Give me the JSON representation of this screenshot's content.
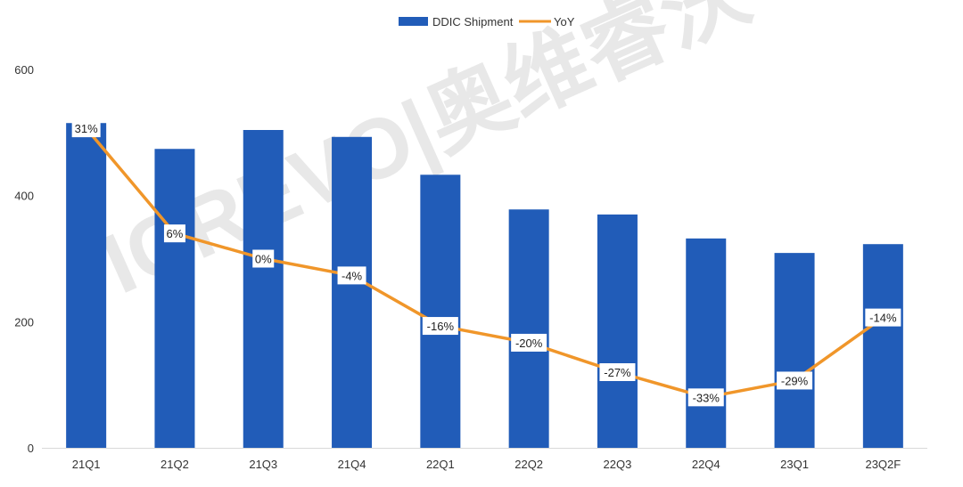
{
  "chart_data": {
    "type": "bar",
    "categories": [
      "21Q1",
      "21Q2",
      "21Q3",
      "21Q4",
      "22Q1",
      "22Q2",
      "22Q3",
      "22Q4",
      "23Q1",
      "23Q2F"
    ],
    "series": [
      {
        "name": "DDIC Shipment",
        "type": "bar",
        "axis": "left",
        "color": "#215CB8",
        "values": [
          515,
          474,
          504,
          493,
          433,
          378,
          370,
          332,
          309,
          323
        ]
      },
      {
        "name": "YoY",
        "type": "line",
        "axis": "right-hidden",
        "color": "#F0962A",
        "values": [
          31,
          6,
          0,
          -4,
          -16,
          -20,
          -27,
          -33,
          -29,
          -14
        ],
        "labels": [
          "31%",
          "6%",
          "0%",
          "-4%",
          "-16%",
          "-20%",
          "-27%",
          "-33%",
          "-29%",
          "-14%"
        ]
      }
    ],
    "ylim": [
      0,
      600
    ],
    "yticks": [
      "0",
      "200",
      "400",
      "600"
    ],
    "y2lim": [
      -45,
      45
    ],
    "grid": false,
    "legend": "top-center"
  },
  "watermark": "ICREVO|奥维睿沃"
}
